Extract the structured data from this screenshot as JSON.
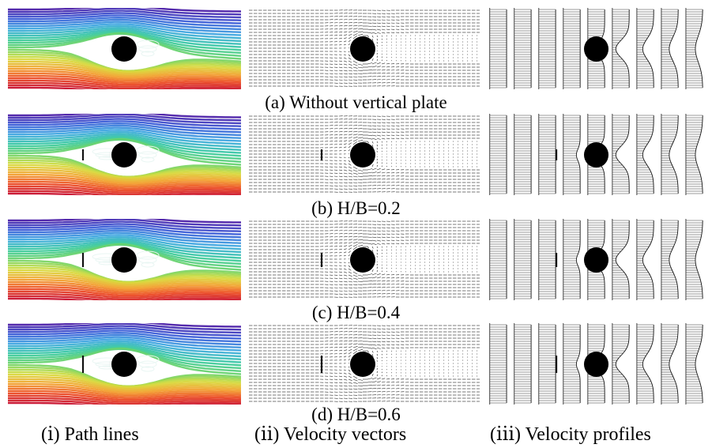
{
  "figure": {
    "rows": [
      {
        "caption": "(a) Without vertical plate",
        "plate": false,
        "plate_ratio": 0
      },
      {
        "caption": "(b) H/B=0.2",
        "plate": true,
        "plate_ratio": 0.2
      },
      {
        "caption": "(c) H/B=0.4",
        "plate": true,
        "plate_ratio": 0.4
      },
      {
        "caption": "(d) H/B=0.6",
        "plate": true,
        "plate_ratio": 0.6
      }
    ],
    "columns": [
      {
        "caption": "(ⅰ) Path lines",
        "kind": "pathlines"
      },
      {
        "caption": "(ⅱ) Velocity vectors",
        "kind": "vectors"
      },
      {
        "caption": "(ⅲ) Velocity profiles",
        "kind": "profiles"
      }
    ],
    "colors": {
      "cylinder": "#000000",
      "pathline_gradient": [
        "#4b1fa8",
        "#3a5fd8",
        "#3fa9e0",
        "#39c9a2",
        "#6fd46a",
        "#d8dc3e",
        "#f2a430",
        "#ec4b24",
        "#c9122f"
      ]
    }
  }
}
